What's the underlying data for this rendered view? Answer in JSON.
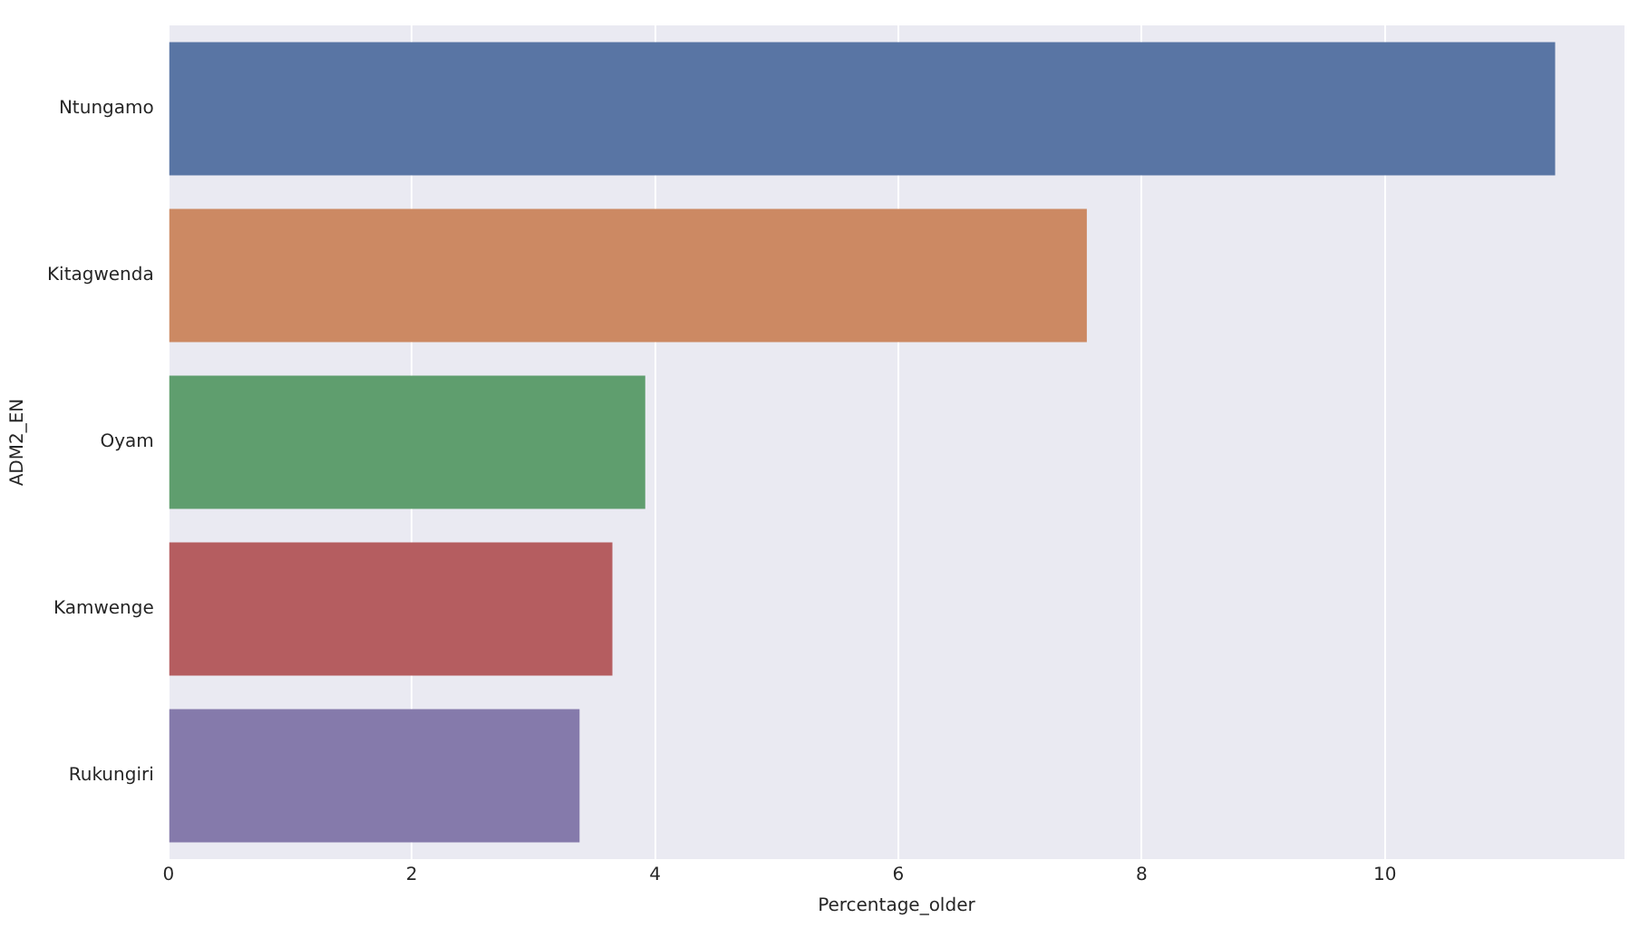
{
  "chart_data": {
    "type": "bar",
    "orientation": "horizontal",
    "xlabel": "Percentage_older",
    "ylabel": "ADM2_EN",
    "categories": [
      "Ntungamo",
      "Kitagwenda",
      "Oyam",
      "Kamwenge",
      "Rukungiri"
    ],
    "values": [
      11.4,
      7.55,
      3.92,
      3.65,
      3.38
    ],
    "colors": [
      "#5975a4",
      "#cc8963",
      "#5f9e6e",
      "#b55d60",
      "#857aab"
    ],
    "xlim": [
      0,
      11.97
    ],
    "xticks": [
      0,
      2,
      4,
      6,
      8,
      10
    ],
    "grid": "x",
    "legend": false
  }
}
